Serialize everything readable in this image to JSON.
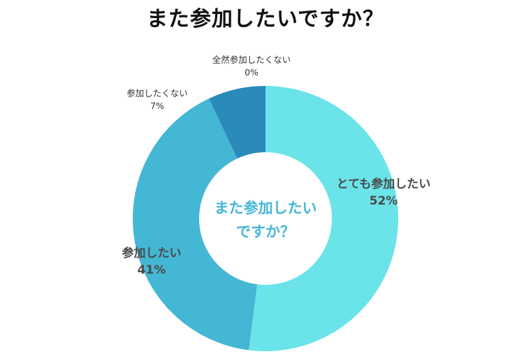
{
  "chart_data": {
    "type": "pie",
    "title": "また参加したいですか？",
    "center_label": [
      "また参加したい",
      "ですか？"
    ],
    "hole": true,
    "slices": [
      {
        "label": "とても参加したい",
        "value": 52,
        "display": "52%",
        "color": "#6ae4e9"
      },
      {
        "label": "参加したい",
        "value": 41,
        "display": "41%",
        "color": "#43b7d4"
      },
      {
        "label": "参加したくない",
        "value": 7,
        "display": "7%",
        "color": "#2a8aba"
      },
      {
        "label": "全然参加したくない",
        "value": 0,
        "display": "0%",
        "color": "#1f5f8f"
      }
    ],
    "start": "12 o'clock",
    "direction": "clockwise"
  }
}
